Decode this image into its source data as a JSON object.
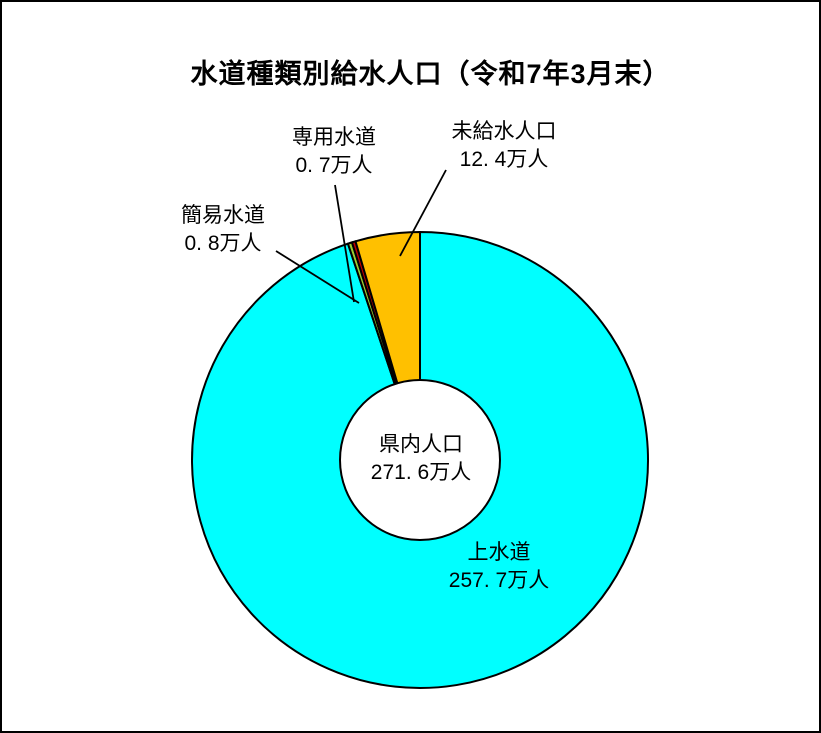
{
  "page": {
    "background": "#FFFFFF",
    "frame_color": "#000000"
  },
  "chart_data": {
    "type": "pie",
    "subtype": "donut",
    "title": "水道種類別給水人口（令和7年3月末）",
    "unit": "万人",
    "direction": "clockwise",
    "start_angle_deg": 0,
    "legend": "none",
    "outline_color": "#000000",
    "hole_fill": "#FFFFFF",
    "total_value": 271.6,
    "center_label": "県内人口",
    "center_value_label": "271. 6万人",
    "segments": [
      {
        "name": "上水道",
        "value": 257.7,
        "value_label": "257. 7万人",
        "color": "#00FFFF",
        "label_style": "inside"
      },
      {
        "name": "簡易水道",
        "value": 0.8,
        "value_label": "0. 8万人",
        "color": "#9ACD32",
        "label_style": "callout"
      },
      {
        "name": "専用水道",
        "value": 0.7,
        "value_label": "0. 7万人",
        "color": "#C00000",
        "label_style": "callout"
      },
      {
        "name": "未給水人口",
        "value": 12.4,
        "value_label": "12. 4万人",
        "color": "#FFC000",
        "label_style": "callout"
      }
    ]
  }
}
